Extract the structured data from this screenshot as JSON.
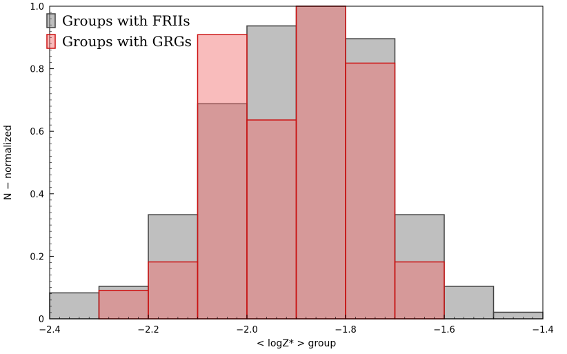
{
  "chart_data": {
    "type": "bar",
    "subtype": "overlaid-histogram",
    "xlabel": "< logZ* > group",
    "ylabel": "N − normalized",
    "xlim": [
      -2.4,
      -1.4
    ],
    "ylim": [
      0,
      1.0
    ],
    "xticks": [
      -2.4,
      -2.2,
      -2.0,
      -1.8,
      -1.6,
      -1.4
    ],
    "xtick_labels": [
      "−2.4",
      "−2.2",
      "−2.0",
      "−1.8",
      "−1.6",
      "−1.4"
    ],
    "yticks": [
      0,
      0.2,
      0.4,
      0.6,
      0.8,
      1.0
    ],
    "ytick_labels": [
      "0",
      "0.2",
      "0.4",
      "0.6",
      "0.8",
      "1.0"
    ],
    "grid": false,
    "legend_position": "top-left",
    "series": [
      {
        "name": "Groups with FRIIs",
        "fill": "#7f7f7f",
        "fill_opacity": 0.5,
        "edge": "#404040",
        "bin_edges": [
          -2.4,
          -2.3,
          -2.2,
          -2.1,
          -2.0,
          -1.9,
          -1.8,
          -1.7,
          -1.6,
          -1.5,
          -1.4
        ],
        "values": [
          0.083,
          0.104,
          0.333,
          0.688,
          0.937,
          1.0,
          0.896,
          0.333,
          0.104,
          0.021
        ]
      },
      {
        "name": "Groups with GRGs",
        "fill": "#f26b6b",
        "fill_opacity": 0.45,
        "edge": "#cc1111",
        "bin_edges": [
          -2.3,
          -2.2,
          -2.1,
          -2.0,
          -1.9,
          -1.8,
          -1.7,
          -1.6
        ],
        "values": [
          0.091,
          0.182,
          0.909,
          0.636,
          1.0,
          0.818,
          0.182
        ]
      }
    ]
  }
}
